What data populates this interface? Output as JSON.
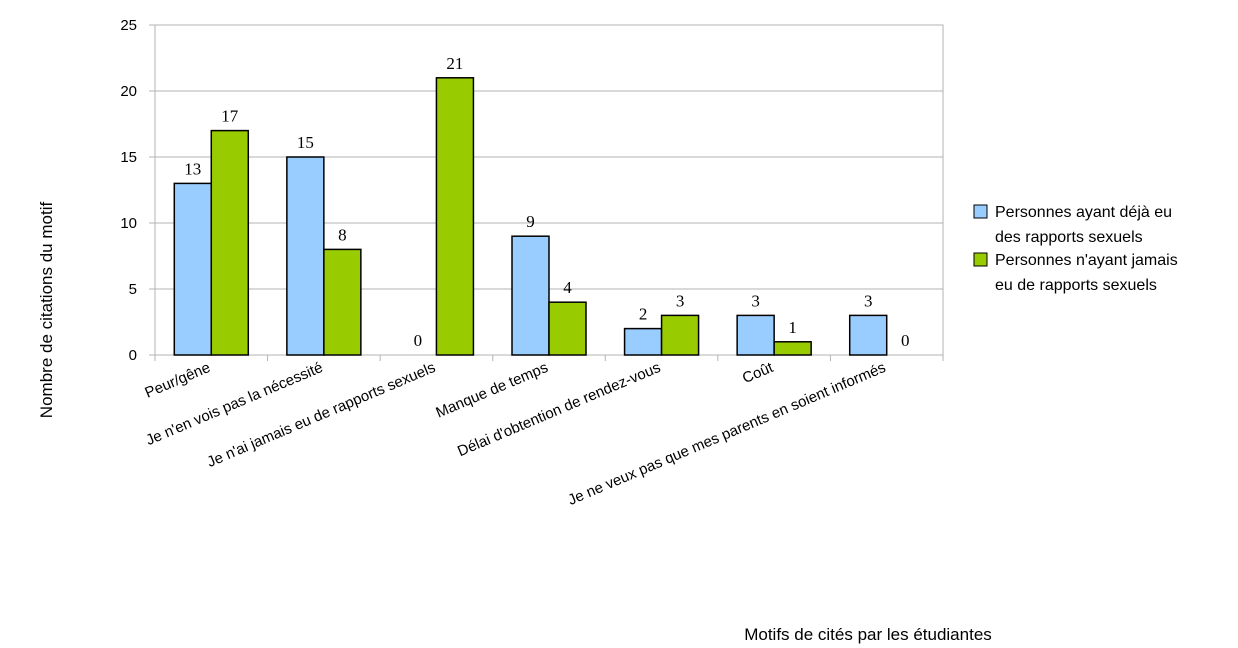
{
  "chart_data": {
    "type": "bar",
    "categories": [
      "Peur/gêne",
      "Je n'en vois pas la nécessité",
      "Je n'ai jamais eu de rapports sexuels",
      "Manque de temps",
      "Délai d'obtention de rendez-vous",
      "Coût",
      "Je ne veux pas que mes parents en soient informés"
    ],
    "series": [
      {
        "name_lines": [
          "Personnes ayant déjà eu",
          "des rapports sexuels"
        ],
        "color": "#99ccff",
        "values": [
          13,
          15,
          0,
          9,
          2,
          3,
          3
        ]
      },
      {
        "name_lines": [
          "Personnes n'ayant jamais",
          "eu de rapports sexuels"
        ],
        "color": "#99cc00",
        "values": [
          17,
          8,
          21,
          4,
          3,
          1,
          0
        ]
      }
    ],
    "xlabel": "Motifs de cités par les étudiantes",
    "ylabel": "Nombre de citations du motif",
    "ylim": [
      0,
      25
    ],
    "yticks": [
      0,
      5,
      10,
      15,
      20,
      25
    ],
    "grid": true,
    "legend": "right"
  }
}
